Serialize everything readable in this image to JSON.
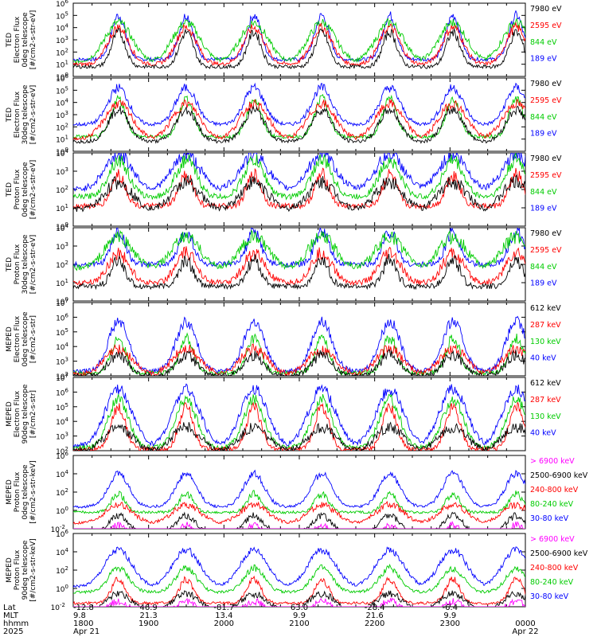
{
  "chart_data": {
    "type": "line",
    "x_axis": {
      "rows": [
        {
          "label": "Lat",
          "values": [
            "-12.8",
            "46.9",
            "-81.7",
            "63.0",
            "-28.4",
            "-6.4",
            ""
          ]
        },
        {
          "label": "MLT",
          "values": [
            "9.8",
            "21.3",
            "13.4",
            "9.9",
            "21.6",
            "9.9",
            ""
          ]
        },
        {
          "label": "hhmm",
          "values": [
            "1800",
            "1900",
            "2000",
            "2100",
            "2200",
            "2300",
            "0000"
          ]
        },
        {
          "label": "2025",
          "values": [
            "Apr 21",
            "",
            "",
            "",
            "",
            "",
            "Apr 22"
          ]
        }
      ]
    },
    "panels": [
      {
        "ylabel": [
          "TED",
          "Electron Flux",
          "0deg telescope",
          "[#/cm2-s-str-eV]"
        ],
        "yticks": [
          "10^0",
          "10^1",
          "10^2",
          "10^3",
          "10^4",
          "10^5",
          "10^6"
        ],
        "series": [
          {
            "name": "7980 eV",
            "color": "#000000",
            "base": 0.8,
            "peak": 3.6
          },
          {
            "name": "2595 eV",
            "color": "#ff0000",
            "base": 1.0,
            "peak": 4.0
          },
          {
            "name": "844 eV",
            "color": "#00cc00",
            "base": 1.2,
            "peak": 4.4
          },
          {
            "name": "189 eV",
            "color": "#0000ff",
            "base": 1.4,
            "peak": 5.0
          }
        ]
      },
      {
        "ylabel": [
          "TED",
          "Electron Flux",
          "30deg telescope",
          "[#/cm2-s-str-eV]"
        ],
        "yticks": [
          "10^0",
          "10^1",
          "10^2",
          "10^3",
          "10^4",
          "10^5",
          "10^6"
        ],
        "series": [
          {
            "name": "7980 eV",
            "color": "#000000",
            "base": 0.8,
            "peak": 3.4
          },
          {
            "name": "2595 eV",
            "color": "#ff0000",
            "base": 1.0,
            "peak": 3.9
          },
          {
            "name": "844 eV",
            "color": "#00cc00",
            "base": 1.2,
            "peak": 4.3
          },
          {
            "name": "189 eV",
            "color": "#0000ff",
            "base": 2.2,
            "peak": 5.2
          }
        ]
      },
      {
        "ylabel": [
          "TED",
          "Proton Flux",
          "0deg telescope",
          "[#/cm2-s-str-eV]"
        ],
        "yticks": [
          "10^0",
          "10^1",
          "10^2",
          "10^3",
          "10^4"
        ],
        "series": [
          {
            "name": "7980 eV",
            "color": "#000000",
            "base": 0.9,
            "peak": 2.4
          },
          {
            "name": "2595 eV",
            "color": "#ff0000",
            "base": 1.1,
            "peak": 2.8
          },
          {
            "name": "844 eV",
            "color": "#00cc00",
            "base": 1.6,
            "peak": 3.6
          },
          {
            "name": "189 eV",
            "color": "#0000ff",
            "base": 2.0,
            "peak": 3.9
          }
        ]
      },
      {
        "ylabel": [
          "TED",
          "Proton Flux",
          "30deg telescope",
          "[#/cm2-s-str-eV]"
        ],
        "yticks": [
          "10^0",
          "10^1",
          "10^2",
          "10^3",
          "10^4"
        ],
        "series": [
          {
            "name": "7980 eV",
            "color": "#000000",
            "base": 0.8,
            "peak": 2.2
          },
          {
            "name": "2595 eV",
            "color": "#ff0000",
            "base": 1.0,
            "peak": 2.6
          },
          {
            "name": "844 eV",
            "color": "#00cc00",
            "base": 1.8,
            "peak": 3.5
          },
          {
            "name": "189 eV",
            "color": "#0000ff",
            "base": 2.0,
            "peak": 3.8
          }
        ]
      },
      {
        "ylabel": [
          "MEPED",
          "Electron Flux",
          "0deg telescope",
          "[#/cm2-s-str]"
        ],
        "yticks": [
          "10^2",
          "10^3",
          "10^4",
          "10^5",
          "10^6",
          "10^7"
        ],
        "series": [
          {
            "name": "612 keV",
            "color": "#000000",
            "base": 2.0,
            "peak": 3.4
          },
          {
            "name": "287 keV",
            "color": "#ff0000",
            "base": 2.1,
            "peak": 3.8
          },
          {
            "name": "130 keV",
            "color": "#00cc00",
            "base": 2.2,
            "peak": 4.6
          },
          {
            "name": "40 keV",
            "color": "#0000ff",
            "base": 2.3,
            "peak": 5.7
          }
        ]
      },
      {
        "ylabel": [
          "MEPED",
          "Electron Flux",
          "90deg telescope",
          "[#/cm2-s-str]"
        ],
        "yticks": [
          "10^2",
          "10^3",
          "10^4",
          "10^5",
          "10^6",
          "10^7"
        ],
        "series": [
          {
            "name": "612 keV",
            "color": "#000000",
            "base": 2.0,
            "peak": 3.6
          },
          {
            "name": "287 keV",
            "color": "#ff0000",
            "base": 2.1,
            "peak": 5.0
          },
          {
            "name": "130 keV",
            "color": "#00cc00",
            "base": 2.2,
            "peak": 5.5
          },
          {
            "name": "40 keV",
            "color": "#0000ff",
            "base": 2.3,
            "peak": 6.2
          }
        ]
      },
      {
        "ylabel": [
          "MEPED",
          "Proton Flux",
          "0deg telescope",
          "[#/cm2-s-str-keV]"
        ],
        "yticks": [
          "10^-2",
          "10^0",
          "10^2",
          "10^4",
          "10^6"
        ],
        "series": [
          {
            "name": "> 6900 keV",
            "color": "#ff00ff",
            "base": -2.8,
            "peak": -1.6
          },
          {
            "name": "2500-6900 keV",
            "color": "#000000",
            "base": -2.6,
            "peak": -0.6
          },
          {
            "name": "240-800 keV",
            "color": "#ff0000",
            "base": -1.4,
            "peak": 0.6
          },
          {
            "name": "80-240 keV",
            "color": "#00cc00",
            "base": -0.2,
            "peak": 1.8
          },
          {
            "name": "30-80 keV",
            "color": "#0000ff",
            "base": 0.4,
            "peak": 4.0
          }
        ]
      },
      {
        "ylabel": [
          "MEPED",
          "Proton Flux",
          "90deg telescope",
          "[#/cm2-s-str-keV]"
        ],
        "yticks": [
          "10^-2",
          "10^0",
          "10^2",
          "10^4",
          "10^6"
        ],
        "series": [
          {
            "name": "> 6900 keV",
            "color": "#ff00ff",
            "base": -2.8,
            "peak": -1.4
          },
          {
            "name": "2500-6900 keV",
            "color": "#000000",
            "base": -2.6,
            "peak": -0.6
          },
          {
            "name": "240-800 keV",
            "color": "#ff0000",
            "base": -1.6,
            "peak": 1.0
          },
          {
            "name": "80-240 keV",
            "color": "#00cc00",
            "base": -0.4,
            "peak": 2.2
          },
          {
            "name": "30-80 keV",
            "color": "#0000ff",
            "base": 0.2,
            "peak": 4.2
          }
        ]
      }
    ],
    "grid": false,
    "legend": "right"
  }
}
